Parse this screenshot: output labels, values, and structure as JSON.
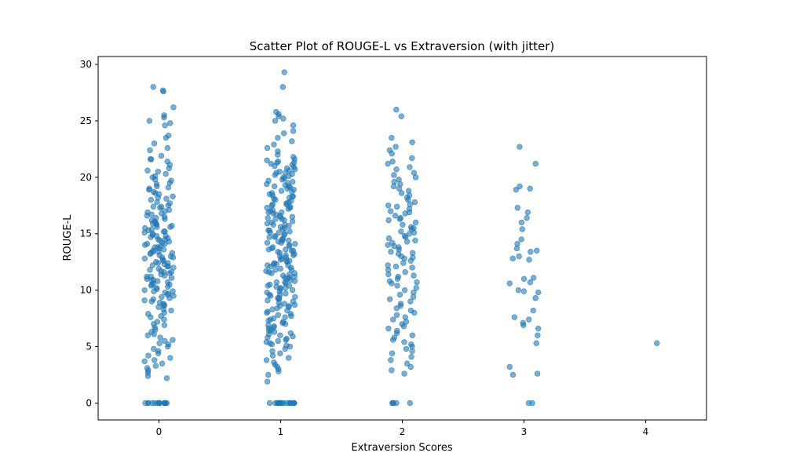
{
  "chart_data": {
    "type": "scatter",
    "title": "Scatter Plot of ROUGE-L vs Extraversion (with jitter)",
    "xlabel": "Extraversion Scores",
    "ylabel": "ROUGE-L",
    "x_ticks": [
      0,
      1,
      2,
      3,
      4
    ],
    "y_ticks": [
      0,
      5,
      10,
      15,
      20,
      25,
      30
    ],
    "xlim": [
      -0.5,
      4.5
    ],
    "ylim": [
      -1.5,
      30.7
    ],
    "point_color": "#1f77b4",
    "point_alpha": 0.6,
    "grid": false,
    "legend": "none",
    "jitter_width": 0.12,
    "groups": [
      {
        "x": 0,
        "y": [
          27.6,
          28.0,
          27.7,
          26.2,
          25.5,
          25.3,
          25.0,
          24.8,
          24.6,
          23.7,
          23.5,
          23.0,
          22.6,
          22.4,
          21.9,
          21.6,
          21.6,
          21.4,
          21.1,
          20.8,
          20.6,
          20.5,
          20.3,
          20.1,
          20.0,
          19.8,
          19.7,
          19.5,
          19.4,
          19.2,
          19.1,
          19.0,
          18.9,
          18.7,
          18.6,
          18.5,
          18.3,
          18.2,
          18.1,
          18.0,
          17.8,
          17.7,
          17.5,
          17.4,
          17.3,
          17.1,
          17.0,
          16.9,
          16.8,
          16.6,
          16.5,
          16.4,
          16.3,
          16.2,
          16.0,
          15.9,
          15.8,
          15.7,
          15.6,
          15.5,
          15.4,
          15.3,
          15.2,
          15.1,
          15.0,
          14.9,
          14.8,
          14.7,
          14.6,
          14.5,
          14.4,
          14.3,
          14.2,
          14.1,
          14.0,
          13.9,
          13.8,
          13.7,
          13.6,
          13.5,
          13.4,
          13.3,
          13.2,
          13.1,
          13.0,
          12.9,
          12.8,
          12.7,
          12.6,
          12.5,
          12.4,
          12.3,
          12.2,
          12.1,
          12.0,
          11.9,
          11.8,
          11.7,
          11.6,
          11.5,
          11.4,
          11.3,
          11.2,
          11.1,
          11.0,
          10.9,
          10.8,
          10.7,
          10.6,
          10.5,
          10.4,
          10.3,
          10.2,
          10.1,
          10.0,
          9.9,
          9.8,
          9.7,
          9.6,
          9.5,
          9.4,
          9.3,
          9.2,
          9.1,
          9.0,
          8.9,
          8.8,
          8.7,
          8.6,
          8.5,
          8.3,
          8.2,
          8.0,
          7.9,
          7.7,
          7.6,
          7.4,
          7.2,
          7.0,
          6.9,
          6.7,
          6.5,
          6.3,
          6.1,
          6.0,
          5.8,
          5.6,
          5.5,
          5.3,
          5.2,
          5.0,
          4.8,
          4.6,
          4.4,
          4.2,
          4.0,
          3.8,
          3.7,
          3.5,
          3.3,
          3.1,
          2.9,
          2.7,
          2.4,
          2.2,
          14.5,
          15.2,
          16.1,
          13.3,
          12.4,
          11.6,
          10.9,
          14.1,
          15.6,
          13.8,
          12.9,
          11.2,
          16.7,
          17.4,
          9.9,
          10.5,
          14.8,
          13.4,
          12.1,
          15.9,
          0,
          0,
          0,
          0,
          0,
          0,
          0,
          0,
          0,
          0,
          0,
          0,
          0,
          0
        ]
      },
      {
        "x": 1,
        "y": [
          29.3,
          28.0,
          25.8,
          25.6,
          25.4,
          25.2,
          25.0,
          24.6,
          24.1,
          23.9,
          23.5,
          23.2,
          22.9,
          22.6,
          22.3,
          22.0,
          21.8,
          21.6,
          21.5,
          21.4,
          21.3,
          21.2,
          21.1,
          21.0,
          20.9,
          20.8,
          20.7,
          20.6,
          20.5,
          20.4,
          20.3,
          20.2,
          20.1,
          20.0,
          19.9,
          19.8,
          19.7,
          19.6,
          19.5,
          19.4,
          19.3,
          19.2,
          19.1,
          19.0,
          18.9,
          18.8,
          18.7,
          18.6,
          18.5,
          18.4,
          18.3,
          18.2,
          18.1,
          18.0,
          17.9,
          17.8,
          17.7,
          17.6,
          17.5,
          17.4,
          17.3,
          17.2,
          17.1,
          17.0,
          16.9,
          16.8,
          16.7,
          16.6,
          16.5,
          16.4,
          16.3,
          16.2,
          16.1,
          16.0,
          15.9,
          15.8,
          15.7,
          15.6,
          15.5,
          15.4,
          15.3,
          15.2,
          15.1,
          15.0,
          14.9,
          14.8,
          14.7,
          14.6,
          14.5,
          14.4,
          14.3,
          14.2,
          14.1,
          14.0,
          13.9,
          13.8,
          13.7,
          13.6,
          13.5,
          13.4,
          13.3,
          13.2,
          13.1,
          13.0,
          12.9,
          12.8,
          12.7,
          12.6,
          12.5,
          12.4,
          12.3,
          12.2,
          12.1,
          12.0,
          11.9,
          11.8,
          11.7,
          11.6,
          11.5,
          11.4,
          11.3,
          11.2,
          11.1,
          11.0,
          10.9,
          10.8,
          10.7,
          10.6,
          10.5,
          10.4,
          10.3,
          10.2,
          10.1,
          10.0,
          9.9,
          9.8,
          9.7,
          9.6,
          9.5,
          9.4,
          9.3,
          9.2,
          9.1,
          9.0,
          8.9,
          8.8,
          8.7,
          8.6,
          8.5,
          8.4,
          8.3,
          8.2,
          8.1,
          8.0,
          7.9,
          7.8,
          7.7,
          7.6,
          7.5,
          7.4,
          7.3,
          7.2,
          7.1,
          7.0,
          6.9,
          6.8,
          6.7,
          6.6,
          6.5,
          6.4,
          6.3,
          6.2,
          6.1,
          6.0,
          5.9,
          5.8,
          5.7,
          5.6,
          5.5,
          5.4,
          5.3,
          5.2,
          5.1,
          5.0,
          4.8,
          4.6,
          4.4,
          4.2,
          4.0,
          3.8,
          3.6,
          3.4,
          3.2,
          3.0,
          2.8,
          2.5,
          1.9,
          16.5,
          15.3,
          14.2,
          13.1,
          12.6,
          11.5,
          10.4,
          17.6,
          18.3,
          19.2,
          20.4,
          21.3,
          14.7,
          13.6,
          12.3,
          11.1,
          10.2,
          9.3,
          8.6,
          15.8,
          16.9,
          17.3,
          14.4,
          13.5,
          12.2,
          11.8,
          10.7,
          9.6,
          15.1,
          16.3,
          0,
          0,
          0,
          0,
          0,
          0,
          0,
          0,
          0,
          0,
          0,
          0,
          0,
          0,
          0,
          0,
          0,
          0
        ]
      },
      {
        "x": 2,
        "y": [
          26.0,
          25.4,
          23.5,
          23.1,
          22.7,
          22.4,
          22.1,
          21.7,
          21.4,
          21.2,
          20.9,
          20.7,
          20.4,
          20.2,
          20.0,
          19.8,
          19.6,
          19.4,
          19.2,
          19.0,
          18.8,
          18.6,
          18.4,
          18.2,
          18.0,
          17.8,
          17.6,
          17.4,
          17.2,
          17.0,
          16.8,
          16.6,
          16.4,
          16.2,
          16.0,
          15.8,
          15.6,
          15.4,
          15.2,
          15.0,
          14.8,
          14.6,
          14.4,
          14.2,
          14.0,
          13.8,
          13.6,
          13.4,
          13.2,
          13.0,
          12.8,
          12.6,
          12.4,
          12.2,
          12.0,
          11.8,
          11.6,
          11.4,
          11.2,
          11.0,
          10.8,
          10.6,
          10.4,
          10.2,
          10.0,
          9.8,
          9.6,
          9.4,
          9.2,
          9.0,
          8.8,
          8.6,
          8.4,
          8.2,
          8.0,
          7.8,
          7.6,
          7.4,
          7.2,
          7.0,
          6.8,
          6.6,
          6.4,
          6.2,
          6.0,
          5.8,
          5.6,
          5.4,
          5.2,
          5.0,
          4.8,
          4.6,
          4.4,
          4.1,
          3.8,
          3.5,
          3.2,
          2.9,
          2.6,
          16.3,
          15.5,
          14.7,
          13.9,
          12.9,
          12.1,
          15.1,
          14.3,
          13.3,
          16.9,
          17.5,
          11.3,
          10.7,
          0,
          0,
          0,
          0,
          0
        ]
      },
      {
        "x": 3,
        "y": [
          22.7,
          21.2,
          19.2,
          19.0,
          18.9,
          17.3,
          16.9,
          16.4,
          16.0,
          15.4,
          14.5,
          14.1,
          13.7,
          13.5,
          13.4,
          13.0,
          12.8,
          12.7,
          11.1,
          11.0,
          10.7,
          10.6,
          10.0,
          9.9,
          9.8,
          9.3,
          8.2,
          7.6,
          7.4,
          7.1,
          6.9,
          6.6,
          6.0,
          5.3,
          3.2,
          2.6,
          2.5,
          0,
          0
        ]
      },
      {
        "x": 4,
        "y": [
          5.3
        ]
      }
    ]
  }
}
